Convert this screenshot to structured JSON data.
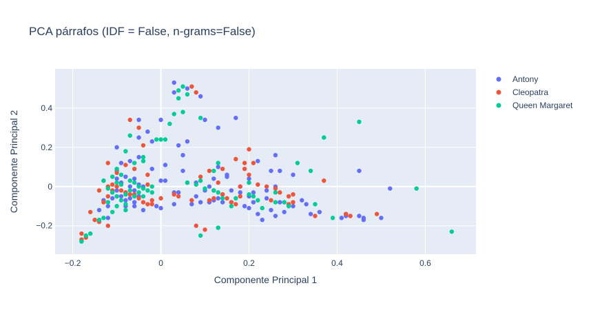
{
  "chart_data": {
    "type": "scatter",
    "title": "PCA párrafos (IDF = False, n-grams=False)",
    "xlabel": "Componente Principal 1",
    "ylabel": "Componente Principal 2",
    "xlim": [
      -0.24,
      0.715
    ],
    "ylim": [
      -0.345,
      0.6
    ],
    "xticks": [
      -0.2,
      0,
      0.2,
      0.4,
      0.6
    ],
    "xtick_labels": [
      "−0.2",
      "0",
      "0.2",
      "0.4",
      "0.6"
    ],
    "yticks": [
      -0.2,
      0,
      0.2,
      0.4
    ],
    "ytick_labels": [
      "−0.2",
      "0",
      "0.2",
      "0.4"
    ],
    "grid": true,
    "legend_position": "top-right",
    "series": [
      {
        "name": "Antony",
        "color": "#636efa",
        "points": [
          [
            0.03,
            0.53
          ],
          [
            0.03,
            0.48
          ],
          [
            0.06,
            0.5
          ],
          [
            0.09,
            0.46
          ],
          [
            0.1,
            0.34
          ],
          [
            0.17,
            0.35
          ],
          [
            0.13,
            0.3
          ],
          [
            0.0,
            0.34
          ],
          [
            -0.05,
            0.34
          ],
          [
            -0.03,
            0.28
          ],
          [
            -0.1,
            0.2
          ],
          [
            -0.05,
            0.25
          ],
          [
            -0.02,
            0.23
          ],
          [
            0.04,
            0.21
          ],
          [
            0.05,
            0.16
          ],
          [
            0.01,
            0.11
          ],
          [
            -0.05,
            0.15
          ],
          [
            -0.07,
            0.13
          ],
          [
            -0.09,
            0.12
          ],
          [
            -0.1,
            0.08
          ],
          [
            -0.08,
            0.05
          ],
          [
            0.05,
            0.08
          ],
          [
            -0.02,
            0.09
          ],
          [
            0.0,
            0.03
          ],
          [
            0.01,
            0.03
          ],
          [
            0.06,
            0.02
          ],
          [
            0.08,
            0.02
          ],
          [
            0.11,
            0.0
          ],
          [
            0.15,
            0.05
          ],
          [
            0.18,
            0.0
          ],
          [
            0.2,
            0.04
          ],
          [
            0.21,
            -0.03
          ],
          [
            0.24,
            -0.02
          ],
          [
            0.26,
            0.0
          ],
          [
            0.27,
            0.08
          ],
          [
            0.25,
            0.08
          ],
          [
            0.3,
            0.06
          ],
          [
            0.22,
            0.13
          ],
          [
            0.26,
            0.16
          ],
          [
            0.13,
            0.1
          ],
          [
            0.15,
            0.06
          ],
          [
            0.12,
            0.04
          ],
          [
            0.1,
            -0.02
          ],
          [
            0.12,
            -0.02
          ],
          [
            0.14,
            -0.04
          ],
          [
            0.16,
            -0.08
          ],
          [
            0.18,
            -0.03
          ],
          [
            0.19,
            -0.1
          ],
          [
            0.2,
            -0.11
          ],
          [
            0.22,
            -0.14
          ],
          [
            0.23,
            -0.17
          ],
          [
            0.25,
            -0.12
          ],
          [
            0.26,
            -0.15
          ],
          [
            0.27,
            -0.08
          ],
          [
            0.29,
            -0.09
          ],
          [
            0.3,
            -0.1
          ],
          [
            0.32,
            -0.07
          ],
          [
            0.34,
            -0.14
          ],
          [
            0.33,
            -0.09
          ],
          [
            0.41,
            -0.16
          ],
          [
            0.42,
            -0.15
          ],
          [
            0.45,
            -0.15
          ],
          [
            0.46,
            -0.17
          ],
          [
            0.5,
            -0.16
          ],
          [
            0.52,
            -0.01
          ],
          [
            0.45,
            0.08
          ],
          [
            0.11,
            -0.08
          ],
          [
            0.09,
            -0.08
          ],
          [
            0.07,
            -0.09
          ],
          [
            0.03,
            -0.09
          ],
          [
            0.0,
            -0.11
          ],
          [
            -0.01,
            -0.1
          ],
          [
            -0.04,
            -0.12
          ],
          [
            -0.06,
            -0.1
          ],
          [
            0.03,
            -0.03
          ],
          [
            0.04,
            -0.03
          ],
          [
            0.12,
            -0.07
          ],
          [
            0.13,
            -0.06
          ],
          [
            0.16,
            -0.02
          ],
          [
            0.2,
            -0.05
          ],
          [
            0.21,
            -0.08
          ],
          [
            0.24,
            -0.06
          ],
          [
            -0.13,
            -0.07
          ],
          [
            -0.12,
            -0.1
          ],
          [
            -0.11,
            -0.03
          ],
          [
            -0.1,
            -0.02
          ],
          [
            -0.09,
            -0.05
          ],
          [
            -0.08,
            -0.07
          ],
          [
            -0.07,
            0.0
          ],
          [
            -0.06,
            -0.02
          ],
          [
            -0.05,
            0.01
          ],
          [
            -0.04,
            0.0
          ],
          [
            -0.1,
            0.04
          ],
          [
            -0.09,
            0.02
          ],
          [
            -0.08,
            -0.03
          ],
          [
            -0.07,
            -0.06
          ],
          [
            -0.06,
            -0.08
          ],
          [
            -0.05,
            -0.05
          ],
          [
            -0.11,
            -0.06
          ],
          [
            -0.08,
            -0.1
          ],
          [
            -0.12,
            -0.16
          ],
          [
            -0.14,
            -0.12
          ],
          [
            0.06,
            0.23
          ],
          [
            -0.06,
            0.04
          ],
          [
            0.28,
            -0.13
          ],
          [
            0.36,
            -0.13
          ],
          [
            0.42,
            -0.14
          ],
          [
            0.46,
            -0.16
          ],
          [
            0.14,
            -0.08
          ],
          [
            0.08,
            -0.05
          ]
        ]
      },
      {
        "name": "Cleopatra",
        "color": "#ef553b",
        "points": [
          [
            0.07,
            0.51
          ],
          [
            0.08,
            0.48
          ],
          [
            -0.07,
            0.34
          ],
          [
            -0.05,
            0.3
          ],
          [
            -0.04,
            0.21
          ],
          [
            -0.12,
            0.12
          ],
          [
            -0.1,
            0.07
          ],
          [
            -0.08,
            0.11
          ],
          [
            -0.06,
            0.09
          ],
          [
            -0.03,
            0.06
          ],
          [
            0.2,
            0.19
          ],
          [
            0.17,
            0.14
          ],
          [
            0.19,
            0.12
          ],
          [
            0.21,
            0.12
          ],
          [
            0.19,
            0.09
          ],
          [
            0.2,
            0.06
          ],
          [
            0.2,
            0.02
          ],
          [
            0.18,
            0.0
          ],
          [
            0.22,
            0.01
          ],
          [
            0.24,
            0.0
          ],
          [
            0.26,
            -0.01
          ],
          [
            0.27,
            -0.03
          ],
          [
            0.29,
            -0.09
          ],
          [
            0.3,
            -0.08
          ],
          [
            0.29,
            -0.05
          ],
          [
            0.3,
            -0.04
          ],
          [
            0.37,
            0.03
          ],
          [
            0.35,
            -0.15
          ],
          [
            0.42,
            -0.14
          ],
          [
            0.43,
            -0.15
          ],
          [
            0.49,
            -0.14
          ],
          [
            0.16,
            -0.08
          ],
          [
            0.17,
            -0.09
          ],
          [
            0.14,
            -0.04
          ],
          [
            0.12,
            -0.06
          ],
          [
            0.11,
            -0.07
          ],
          [
            0.07,
            -0.07
          ],
          [
            0.04,
            -0.05
          ],
          [
            0.0,
            -0.06
          ],
          [
            -0.02,
            -0.09
          ],
          [
            -0.12,
            -0.2
          ],
          [
            -0.14,
            -0.18
          ],
          [
            -0.15,
            -0.17
          ],
          [
            -0.17,
            -0.26
          ],
          [
            -0.16,
            -0.13
          ],
          [
            -0.18,
            -0.27
          ],
          [
            -0.18,
            -0.24
          ],
          [
            -0.13,
            -0.08
          ],
          [
            -0.12,
            -0.05
          ],
          [
            -0.11,
            -0.02
          ],
          [
            -0.1,
            0.0
          ],
          [
            -0.08,
            -0.03
          ],
          [
            -0.06,
            -0.04
          ],
          [
            -0.05,
            -0.06
          ],
          [
            -0.04,
            -0.08
          ],
          [
            -0.03,
            -0.09
          ],
          [
            -0.02,
            -0.07
          ],
          [
            -0.13,
            0.03
          ],
          [
            -0.12,
            0.0
          ],
          [
            -0.11,
            0.01
          ],
          [
            0.1,
            -0.22
          ],
          [
            0.08,
            -0.2
          ],
          [
            0.14,
            0.09
          ],
          [
            0.11,
            0.08
          ],
          [
            0.09,
            0.05
          ],
          [
            -0.09,
            -0.02
          ],
          [
            -0.07,
            -0.04
          ],
          [
            -0.1,
            -0.05
          ],
          [
            -0.14,
            -0.02
          ],
          [
            -0.03,
            0.01
          ],
          [
            0.15,
            -0.06
          ],
          [
            0.13,
            0.02
          ],
          [
            0.25,
            -0.07
          ],
          [
            0.18,
            -0.05
          ],
          [
            0.03,
            -0.04
          ]
        ]
      },
      {
        "name": "Queen Margaret",
        "color": "#00cc96",
        "points": [
          [
            0.04,
            0.49
          ],
          [
            0.05,
            0.51
          ],
          [
            0.06,
            0.47
          ],
          [
            0.04,
            0.45
          ],
          [
            0.03,
            0.37
          ],
          [
            0.05,
            0.38
          ],
          [
            0.09,
            0.35
          ],
          [
            0.02,
            0.32
          ],
          [
            -0.07,
            0.26
          ],
          [
            0.0,
            0.24
          ],
          [
            -0.08,
            0.18
          ],
          [
            -0.04,
            0.15
          ],
          [
            -0.06,
            0.12
          ],
          [
            -0.04,
            0.13
          ],
          [
            -0.01,
            0.24
          ],
          [
            -0.1,
            0.09
          ],
          [
            -0.09,
            0.06
          ],
          [
            -0.11,
            0.05
          ],
          [
            -0.13,
            0.03
          ],
          [
            -0.12,
            -0.01
          ],
          [
            -0.11,
            -0.03
          ],
          [
            -0.1,
            -0.05
          ],
          [
            -0.09,
            -0.07
          ],
          [
            -0.08,
            -0.04
          ],
          [
            -0.07,
            -0.02
          ],
          [
            -0.06,
            -0.05
          ],
          [
            -0.05,
            -0.03
          ],
          [
            -0.04,
            -0.01
          ],
          [
            -0.12,
            -0.08
          ],
          [
            -0.1,
            -0.1
          ],
          [
            -0.08,
            -0.12
          ],
          [
            -0.11,
            -0.13
          ],
          [
            -0.14,
            -0.17
          ],
          [
            -0.13,
            -0.16
          ],
          [
            -0.16,
            -0.24
          ],
          [
            -0.18,
            -0.28
          ],
          [
            -0.17,
            -0.25
          ],
          [
            0.08,
            0.01
          ],
          [
            0.09,
            0.03
          ],
          [
            0.13,
            0.12
          ],
          [
            0.12,
            0.08
          ],
          [
            0.1,
            -0.01
          ],
          [
            0.13,
            -0.03
          ],
          [
            0.14,
            -0.06
          ],
          [
            0.16,
            -0.1
          ],
          [
            0.13,
            -0.21
          ],
          [
            0.09,
            -0.25
          ],
          [
            0.2,
            0.02
          ],
          [
            0.21,
            -0.05
          ],
          [
            0.22,
            -0.07
          ],
          [
            0.23,
            -0.11
          ],
          [
            0.26,
            -0.08
          ],
          [
            0.28,
            -0.08
          ],
          [
            0.29,
            -0.1
          ],
          [
            0.31,
            0.12
          ],
          [
            0.34,
            0.08
          ],
          [
            0.35,
            -0.09
          ],
          [
            0.37,
            0.25
          ],
          [
            0.39,
            -0.16
          ],
          [
            0.45,
            0.33
          ],
          [
            0.58,
            -0.01
          ],
          [
            0.66,
            -0.23
          ],
          [
            -0.05,
            0.0
          ],
          [
            -0.06,
            0.02
          ],
          [
            -0.03,
            -0.02
          ],
          [
            -0.02,
            0.0
          ],
          [
            -0.09,
            0.01
          ],
          [
            -0.07,
            0.03
          ],
          [
            0.17,
            -0.06
          ],
          [
            0.2,
            -0.04
          ],
          [
            0.12,
            -0.02
          ],
          [
            0.26,
            -0.03
          ],
          [
            0.06,
            0.02
          ],
          [
            -0.04,
            -0.05
          ],
          [
            -0.1,
            0.02
          ],
          [
            -0.08,
            -0.09
          ],
          [
            0.01,
            0.24
          ],
          [
            -0.02,
            -0.03
          ]
        ]
      }
    ]
  }
}
